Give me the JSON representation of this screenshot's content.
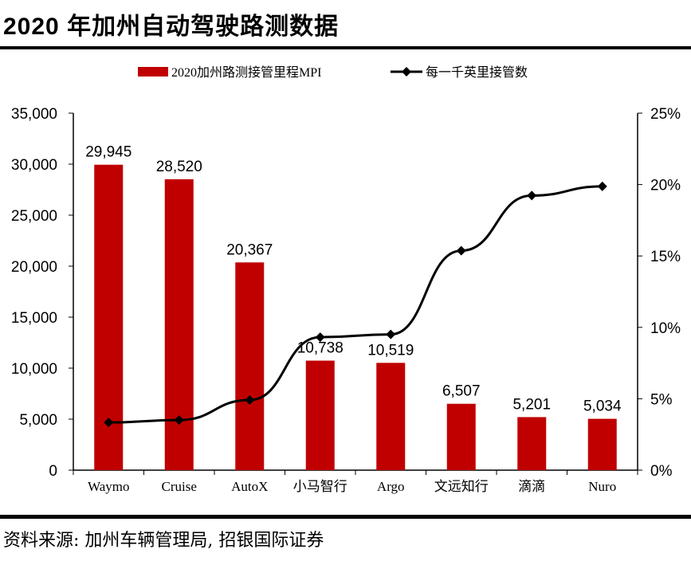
{
  "title": "2020 年加州自动驾驶路测数据",
  "source": "资料来源: 加州车辆管理局, 招银国际证券",
  "chart_data": {
    "type": "bar+line",
    "categories": [
      "Waymo",
      "Cruise",
      "AutoX",
      "小马智行",
      "Argo",
      "文远知行",
      "滴滴",
      "Nuro"
    ],
    "series": [
      {
        "name": "2020加州路测接管里程MPI",
        "type": "bar",
        "axis": "left",
        "color": "#C00000",
        "values": [
          29945,
          28520,
          20367,
          10738,
          10519,
          6507,
          5201,
          5034
        ],
        "labels": [
          "29,945",
          "28,520",
          "20,367",
          "10,738",
          "10,519",
          "6,507",
          "5,201",
          "5,034"
        ]
      },
      {
        "name": "每一千英里接管数",
        "type": "line",
        "axis": "right",
        "color": "#000000",
        "marker": "diamond",
        "values": [
          3.34,
          3.51,
          4.91,
          9.31,
          9.51,
          15.37,
          19.23,
          19.87
        ]
      }
    ],
    "left_axis": {
      "ylim": [
        0,
        35000
      ],
      "ticks": [
        "0",
        "5,000",
        "10,000",
        "15,000",
        "20,000",
        "25,000",
        "30,000",
        "35,000"
      ]
    },
    "right_axis": {
      "ylim": [
        0,
        25
      ],
      "ticks": [
        "0%",
        "5%",
        "10%",
        "15%",
        "20%",
        "25%"
      ]
    },
    "legend": "top-center",
    "grid": false
  }
}
